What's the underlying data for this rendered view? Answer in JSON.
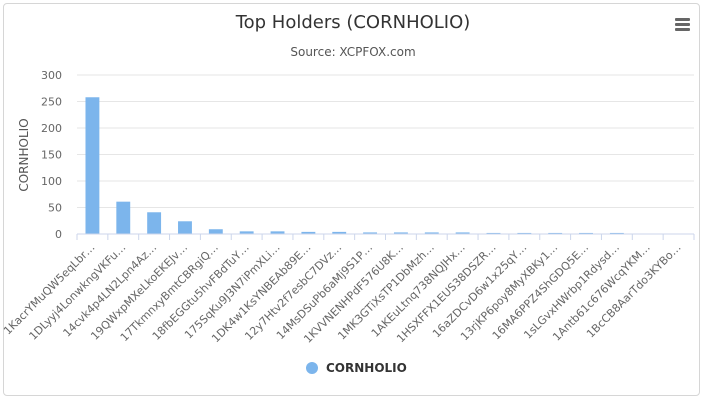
{
  "chart_data": {
    "type": "bar",
    "title": "Top Holders (CORNHOLIO)",
    "subtitle": "Source: XCPFOX.com",
    "ylabel": "CORNHOLIO",
    "xlabel": "",
    "ylim": [
      0,
      300
    ],
    "yticks": [
      "0",
      "50",
      "100",
      "150",
      "200",
      "250",
      "300"
    ],
    "legend": {
      "position": "bottom-center",
      "label": "CORNHOLIO"
    },
    "grid": true,
    "color": "#7cb5ec",
    "categories": [
      "1KacrYMuQW5eqLbr…",
      "1DLyyj4LonwkngVKFu…",
      "14cvk4p4LN2Lpn4Az…",
      "19QWxpMXeLkoEKEJv…",
      "17TkmnxyBmtCBRgiQ…",
      "18fbEGGtu5hvFBdTuY…",
      "175SqKu9J3N7iPmXLi…",
      "1DK4w1KsYNBEAb89E…",
      "12y7Htv2f7esbC7DVz…",
      "14MsDSuPb6aMj9S1P…",
      "1KVVNENHPdF576U8K…",
      "1MK3GTiXsTP1DbMzh…",
      "1AKEuLtnq738NQJHx…",
      "1HSXFFX1EUS38DSZR…",
      "16aZDCvD6w1x25qY…",
      "13rjKP6poy8MyXBKy1…",
      "16MA6PPZ4ShGDQ5E…",
      "1sLGvxHWrbp1Rdysd…",
      "1Antb61c676WcqYKM…",
      "1BcCB8AarTdo3KYBo…"
    ],
    "series": [
      {
        "name": "CORNHOLIO",
        "values": [
          258,
          61,
          41,
          24,
          9,
          5,
          5,
          4,
          4,
          3,
          3,
          3,
          3,
          2,
          2,
          2,
          2,
          2,
          0.3,
          0.3
        ]
      }
    ]
  }
}
